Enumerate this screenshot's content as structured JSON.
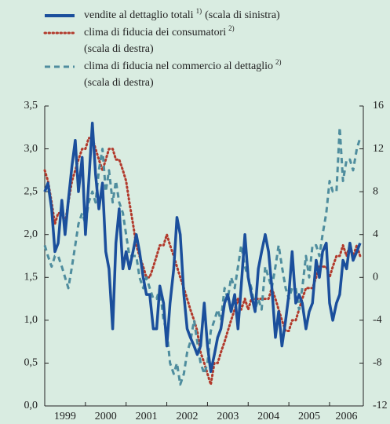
{
  "chart_data": {
    "type": "line",
    "x": [
      1999.0,
      1999.08,
      1999.17,
      1999.25,
      1999.33,
      1999.42,
      1999.5,
      1999.58,
      1999.67,
      1999.75,
      1999.83,
      1999.92,
      2000.0,
      2000.08,
      2000.17,
      2000.25,
      2000.33,
      2000.42,
      2000.5,
      2000.58,
      2000.67,
      2000.75,
      2000.83,
      2000.92,
      2001.0,
      2001.08,
      2001.17,
      2001.25,
      2001.33,
      2001.42,
      2001.5,
      2001.58,
      2001.67,
      2001.75,
      2001.83,
      2001.92,
      2002.0,
      2002.08,
      2002.17,
      2002.25,
      2002.33,
      2002.42,
      2002.5,
      2002.58,
      2002.67,
      2002.75,
      2002.83,
      2002.92,
      2003.0,
      2003.08,
      2003.17,
      2003.25,
      2003.33,
      2003.42,
      2003.5,
      2003.58,
      2003.67,
      2003.75,
      2003.83,
      2003.92,
      2004.0,
      2004.08,
      2004.17,
      2004.25,
      2004.33,
      2004.42,
      2004.5,
      2004.58,
      2004.67,
      2004.75,
      2004.83,
      2004.92,
      2005.0,
      2005.08,
      2005.17,
      2005.25,
      2005.33,
      2005.42,
      2005.5,
      2005.58,
      2005.67,
      2005.75,
      2005.83,
      2005.92,
      2006.0,
      2006.08,
      2006.17,
      2006.25,
      2006.33,
      2006.42,
      2006.5,
      2006.58,
      2006.67,
      2006.75
    ],
    "series": [
      {
        "name": "vendite al dettaglio totali",
        "footnote": "1)",
        "scale_label": "(scala di sinistra)",
        "color": "#1b4f9c",
        "style": "solid",
        "axis": "y",
        "values": [
          2.5,
          2.6,
          2.3,
          1.8,
          1.9,
          2.4,
          2.0,
          2.4,
          2.8,
          3.1,
          2.5,
          2.9,
          2.0,
          2.6,
          3.3,
          2.7,
          2.3,
          2.6,
          1.8,
          1.6,
          0.9,
          1.9,
          2.3,
          1.6,
          1.8,
          1.6,
          1.8,
          2.0,
          1.8,
          1.5,
          1.3,
          1.3,
          0.9,
          0.9,
          1.4,
          1.2,
          0.7,
          1.2,
          1.6,
          2.2,
          2.0,
          1.3,
          0.9,
          0.8,
          0.7,
          0.6,
          0.7,
          1.2,
          0.7,
          0.4,
          0.6,
          0.8,
          0.9,
          1.2,
          1.3,
          1.1,
          1.3,
          0.9,
          1.4,
          2.0,
          1.5,
          1.3,
          1.1,
          1.6,
          1.8,
          2.0,
          1.8,
          1.4,
          0.8,
          1.1,
          0.7,
          1.0,
          1.3,
          1.8,
          1.2,
          1.3,
          1.2,
          0.9,
          1.1,
          1.2,
          1.7,
          1.5,
          1.8,
          1.9,
          1.2,
          1.0,
          1.2,
          1.3,
          1.7,
          1.6,
          1.9,
          1.7,
          1.8,
          1.9
        ]
      },
      {
        "name": "clima di fiducia dei consumatori",
        "footnote": "2)",
        "scale_label": "(scala di destra)",
        "color": "#b23a2c",
        "style": "dotted",
        "axis": "y2",
        "values": [
          10,
          9,
          7,
          5,
          6,
          6,
          5,
          7,
          9,
          10,
          11,
          12,
          12,
          13,
          13,
          12,
          11,
          10,
          11,
          12,
          12,
          11,
          11,
          10,
          9,
          7,
          5,
          3,
          2,
          1,
          0,
          0,
          1,
          2,
          3,
          3,
          4,
          3,
          2,
          1,
          0,
          -1,
          -2,
          -3,
          -4,
          -5,
          -7,
          -8,
          -9,
          -10,
          -8,
          -8,
          -7,
          -6,
          -5,
          -4,
          -3,
          -2,
          -3,
          -2,
          -3,
          -2,
          -2,
          -2,
          -2,
          -2,
          -2,
          -1,
          -2,
          -3,
          -4,
          -5,
          -5,
          -4,
          -4,
          -3,
          -2,
          -1,
          -1,
          -1,
          0,
          1,
          1,
          1,
          0,
          1,
          2,
          2,
          3,
          2,
          3,
          2,
          3,
          2
        ]
      },
      {
        "name": "clima di fiducia nel commercio al dettaglio",
        "footnote": "2)",
        "scale_label": "(scala di destra)",
        "color": "#4f8d9e",
        "style": "dashed",
        "axis": "y2",
        "values": [
          3,
          2,
          1,
          2,
          2,
          1,
          0,
          -1,
          1,
          3,
          5,
          6,
          5,
          7,
          8,
          7,
          10,
          12,
          8,
          10,
          7,
          9,
          7,
          6,
          4,
          2,
          2,
          2,
          0,
          -1,
          0,
          -1,
          -2,
          -2,
          -1,
          -4,
          -5,
          -8,
          -9,
          -8,
          -10,
          -9,
          -7,
          -6,
          -4,
          -6,
          -8,
          -9,
          -8,
          -5,
          -4,
          -3,
          -4,
          -1,
          -2,
          0,
          -1,
          1,
          3,
          1,
          0,
          -1,
          -3,
          -2,
          -3,
          1,
          0,
          -1,
          1,
          3,
          1,
          -1,
          -2,
          -1,
          -1,
          -3,
          -1,
          2,
          0,
          3,
          3,
          2,
          4,
          6,
          9,
          8,
          8,
          14,
          9,
          11,
          11,
          10,
          12,
          13
        ]
      }
    ],
    "xlim": [
      1999,
      2006.83
    ],
    "xticks": [
      1999,
      2000,
      2001,
      2002,
      2003,
      2004,
      2005,
      2006
    ],
    "ylim": [
      0,
      3.5
    ],
    "yticks": [
      {
        "value": 0,
        "label": "0,0"
      },
      {
        "value": 0.5,
        "label": "0,5"
      },
      {
        "value": 1,
        "label": "1,0"
      },
      {
        "value": 1.5,
        "label": "1,5"
      },
      {
        "value": 2,
        "label": "2,0"
      },
      {
        "value": 2.5,
        "label": "2,5"
      },
      {
        "value": 3,
        "label": "3,0"
      },
      {
        "value": 3.5,
        "label": "3,5"
      }
    ],
    "y2lim": [
      -12,
      16
    ],
    "y2ticks": [
      -12,
      -8,
      -4,
      0,
      4,
      8,
      12,
      16
    ]
  }
}
